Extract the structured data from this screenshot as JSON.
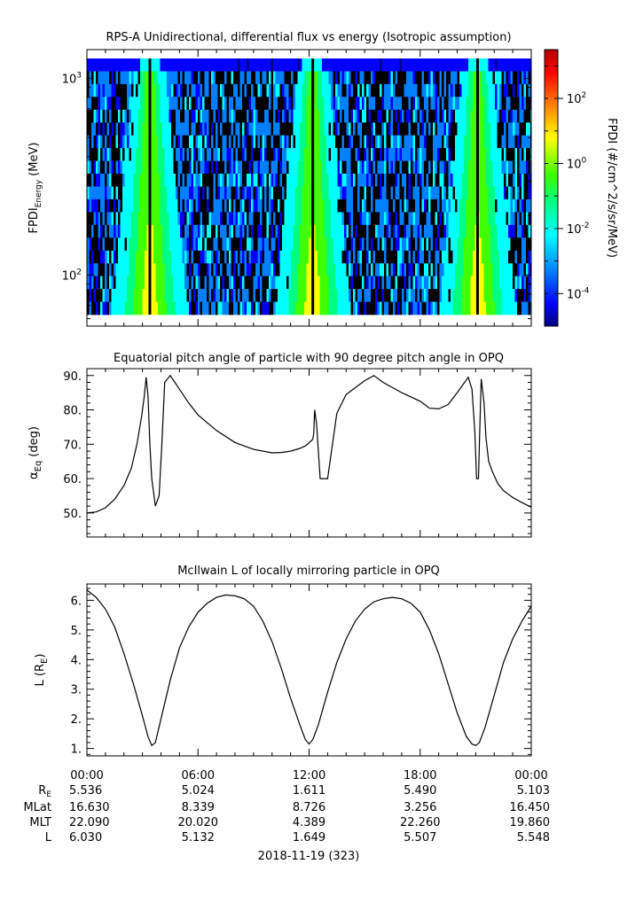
{
  "chart_data": [
    {
      "type": "heatmap",
      "title": "RPS-A Unidirectional, differential flux vs energy (Isotropic assumption)",
      "ylabel_main": "FPDI",
      "ylabel_sub": "Energy",
      "ylabel_unit": "(MeV)",
      "yscale": "log",
      "ylim": [
        55,
        1400
      ],
      "y_ticks": [
        {
          "value": 100,
          "base": "10",
          "exp": "2"
        },
        {
          "value": 1000,
          "base": "10",
          "exp": "3"
        }
      ],
      "colorbar": {
        "label": "FPDI (#/cm^2/s/sr/MeV)",
        "scale": "log",
        "range_exp": [
          -5,
          3.5
        ],
        "ticks": [
          {
            "exp": -4,
            "base": "10",
            "sup": "-4"
          },
          {
            "exp": -2,
            "base": "10",
            "sup": "-2"
          },
          {
            "exp": 0,
            "base": "10",
            "sup": "0"
          },
          {
            "exp": 2,
            "base": "10",
            "sup": "2"
          }
        ],
        "colors": [
          "#00007f",
          "#0000ff",
          "#0080ff",
          "#00ffff",
          "#00ff80",
          "#40ff00",
          "#ffff00",
          "#ff8000",
          "#ff0000",
          "#b40000"
        ]
      },
      "peak_hours": [
        3.4,
        12.2,
        21.1
      ]
    },
    {
      "type": "line",
      "title": "Equatorial pitch angle of particle with 90 degree pitch angle in OPQ",
      "ylabel_main": "α",
      "ylabel_sub": "Eq",
      "ylabel_unit": "(deg)",
      "ylim": [
        43,
        92
      ],
      "y_ticks": [
        "50.",
        "60.",
        "70.",
        "80.",
        "90."
      ],
      "y_tick_values": [
        50,
        60,
        70,
        80,
        90
      ],
      "x_hours": [
        0,
        0.5,
        1,
        1.5,
        2,
        2.4,
        2.7,
        2.95,
        3.1,
        3.2,
        3.3,
        3.4,
        3.5,
        3.7,
        3.9,
        4.05,
        4.2,
        4.5,
        5,
        5.5,
        6,
        7,
        8,
        9,
        10,
        10.5,
        11,
        11.5,
        11.8,
        11.95,
        12.05,
        12.12,
        12.2,
        12.25,
        12.3,
        12.4,
        12.6,
        13,
        13.5,
        14,
        15,
        15.5,
        16,
        17,
        18,
        18.5,
        19,
        19.5,
        20,
        20.6,
        20.8,
        20.95,
        21.05,
        21.15,
        21.2,
        21.3,
        21.45,
        21.55,
        21.7,
        21.9,
        22.2,
        22.5,
        23,
        23.5,
        24
      ],
      "y_values": [
        50,
        50.3,
        51.5,
        54,
        58,
        63,
        70,
        78,
        84,
        89.5,
        84,
        70,
        60,
        52,
        55,
        70,
        88,
        90,
        86,
        82,
        78.5,
        74,
        70.5,
        68.5,
        67.5,
        67.6,
        68,
        68.8,
        69.5,
        70.2,
        70.7,
        71,
        71.5,
        73,
        80,
        76,
        60,
        60,
        79,
        84.5,
        88.5,
        90,
        88,
        85,
        82.5,
        80.5,
        80.3,
        81.5,
        85,
        89.5,
        86,
        74,
        60,
        60,
        70,
        89,
        82,
        72,
        65,
        62,
        58.5,
        56.5,
        54.5,
        53,
        51.7
      ]
    },
    {
      "type": "line",
      "title": "McIlwain L of locally mirroring particle in OPQ",
      "ylabel_main": "L (R",
      "ylabel_sub": "E",
      "ylabel_unit": ")",
      "ylim": [
        0.75,
        6.55
      ],
      "y_ticks": [
        "1.",
        "2.",
        "3.",
        "4.",
        "5.",
        "6."
      ],
      "y_tick_values": [
        1,
        2,
        3,
        4,
        5,
        6
      ],
      "x_hours": [
        0,
        0.5,
        1,
        1.5,
        2,
        2.5,
        3,
        3.3,
        3.5,
        3.7,
        4,
        4.5,
        5,
        5.5,
        6,
        6.5,
        7,
        7.5,
        8,
        8.5,
        9,
        9.5,
        10,
        10.5,
        11,
        11.5,
        11.8,
        12,
        12.2,
        12.5,
        13,
        13.5,
        14,
        14.5,
        15,
        15.5,
        16,
        16.5,
        17,
        17.5,
        18,
        18.5,
        19,
        19.5,
        20,
        20.5,
        20.8,
        21,
        21.2,
        21.5,
        22,
        22.5,
        23,
        23.5,
        24
      ],
      "y_values": [
        6.35,
        6.1,
        5.7,
        5.1,
        4.2,
        3.2,
        2.1,
        1.4,
        1.1,
        1.2,
        2.0,
        3.3,
        4.4,
        5.1,
        5.6,
        5.9,
        6.1,
        6.18,
        6.15,
        6.05,
        5.8,
        5.3,
        4.6,
        3.7,
        2.7,
        1.8,
        1.3,
        1.15,
        1.3,
        1.8,
        2.9,
        3.9,
        4.7,
        5.3,
        5.7,
        5.95,
        6.05,
        6.1,
        6.05,
        5.9,
        5.6,
        5.0,
        4.2,
        3.2,
        2.2,
        1.4,
        1.15,
        1.1,
        1.2,
        1.7,
        2.8,
        3.9,
        4.7,
        5.3,
        5.8
      ]
    }
  ],
  "x_axis": {
    "tick_labels": [
      "00:00",
      "06:00",
      "12:00",
      "18:00",
      "00:00"
    ],
    "tick_hours": [
      0,
      6,
      12,
      18,
      24
    ],
    "minor_step_hours": 1,
    "date_label": "2018-11-19 (323)"
  },
  "ephemeris": {
    "rows": [
      {
        "label_main": "R",
        "label_sub": "E",
        "values": [
          "5.536",
          "5.024",
          "1.611",
          "5.490",
          "5.103"
        ]
      },
      {
        "label_main": "MLat",
        "label_sub": "",
        "values": [
          "16.630",
          "8.339",
          "8.726",
          "3.256",
          "16.450"
        ]
      },
      {
        "label_main": "MLT",
        "label_sub": "",
        "values": [
          "22.090",
          "20.020",
          "4.389",
          "22.260",
          "19.860"
        ]
      },
      {
        "label_main": "L",
        "label_sub": "",
        "values": [
          "6.030",
          "5.132",
          "1.649",
          "5.507",
          "5.548"
        ]
      }
    ]
  }
}
